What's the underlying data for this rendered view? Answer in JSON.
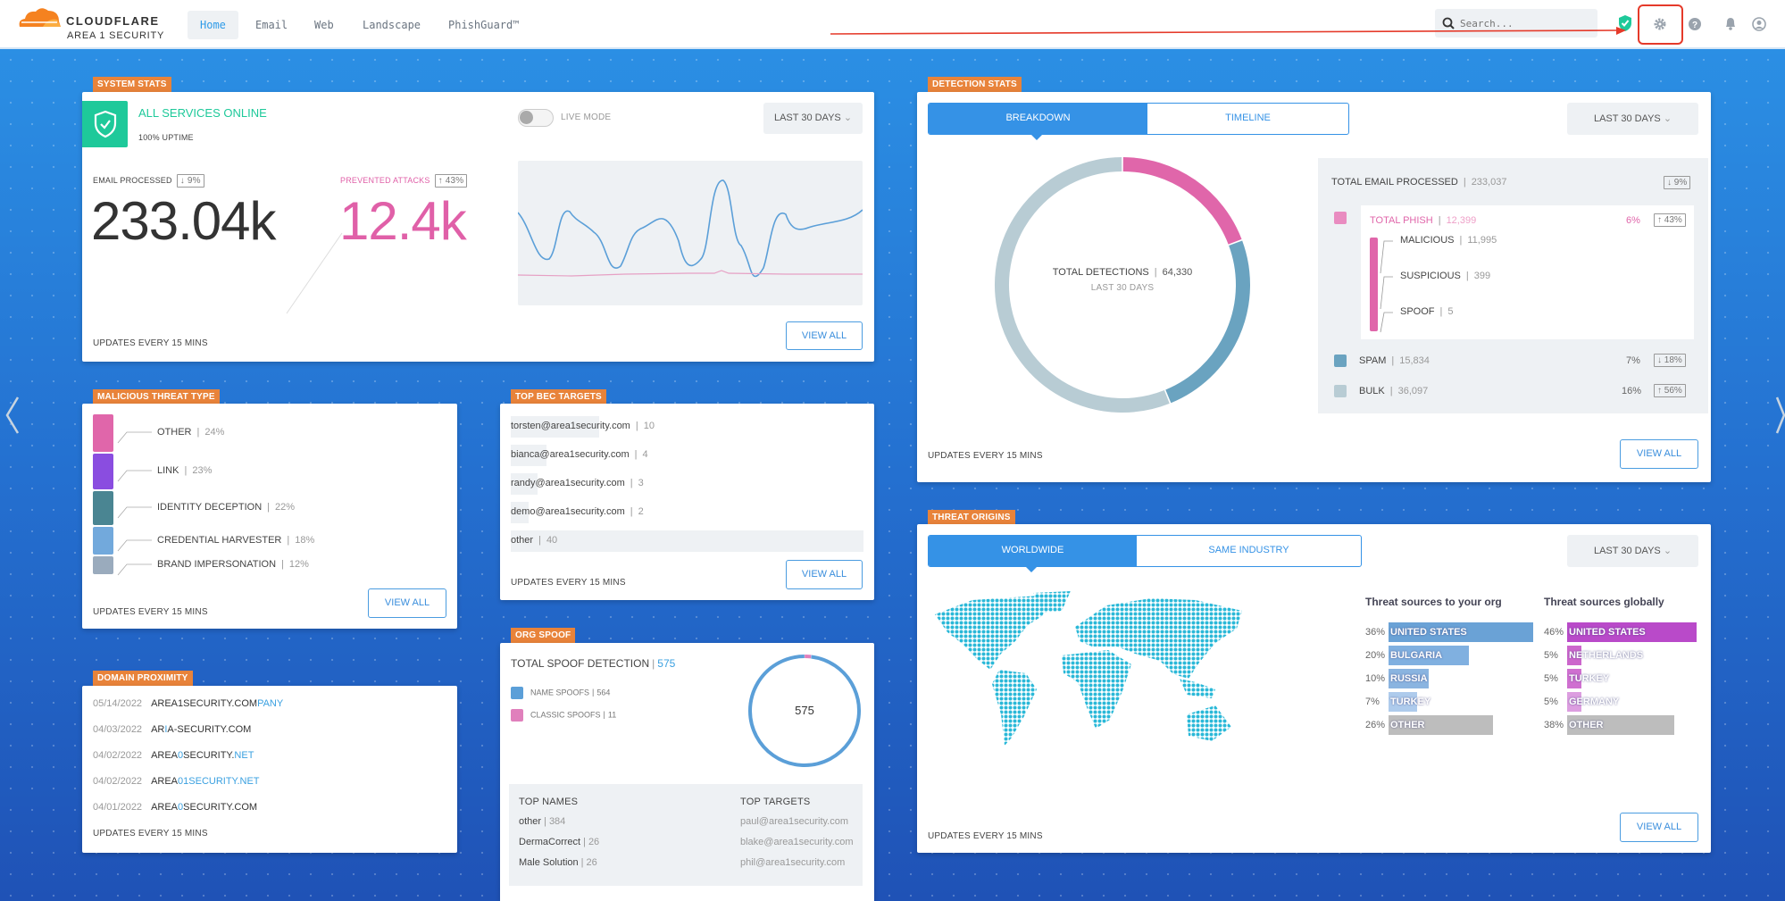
{
  "header": {
    "brand": "CLOUDFLARE",
    "sub_brand": "AREA 1 SECURITY",
    "nav": [
      {
        "label": "Home",
        "active": true
      },
      {
        "label": "Email"
      },
      {
        "label": "Web"
      },
      {
        "label": "Landscape"
      },
      {
        "label": "PhishGuard™"
      }
    ],
    "search_placeholder": "Search...",
    "icons": [
      "shield-check-icon",
      "gear-icon",
      "help-icon",
      "bell-icon",
      "user-icon"
    ],
    "annotation_color": "#e53a2a"
  },
  "common": {
    "updates": "UPDATES EVERY 15 MINS",
    "view_all": "VIEW ALL",
    "range": "LAST 30 DAYS"
  },
  "system_stats": {
    "tag": "SYSTEM STATS",
    "status": "ALL SERVICES ONLINE",
    "uptime": "100% UPTIME",
    "live_mode": "LIVE MODE",
    "live_mode_on": false,
    "email_label": "EMAIL PROCESSED",
    "email_change": "↓ 9%",
    "email_value": "233.04k",
    "prevented_label": "PREVENTED ATTACKS",
    "prevented_change": "↑ 43%",
    "prevented_value": "12.4k",
    "colors": {
      "online": "#1ec99a",
      "email_line": "#5b9fd8",
      "attack_line": "#e6a0c4"
    }
  },
  "detection_stats": {
    "tag": "DETECTION STATS",
    "tabs": [
      "BREAKDOWN",
      "TIMELINE"
    ],
    "active_tab": "BREAKDOWN",
    "total_label": "TOTAL DETECTIONS",
    "total_value": "64,330",
    "total_sub": "LAST 30 DAYS",
    "email_total_label": "TOTAL EMAIL PROCESSED",
    "email_total_value": "233,037",
    "email_total_change": "↓ 9%",
    "phish": {
      "label": "TOTAL PHISH",
      "value": "12,399",
      "pct": "6%",
      "change": "↑ 43%",
      "color": "#e066aa",
      "count": 12399
    },
    "phish_breakdown": [
      {
        "label": "MALICIOUS",
        "value": "11,995"
      },
      {
        "label": "SUSPICIOUS",
        "value": "399"
      },
      {
        "label": "SPOOF",
        "value": "5"
      }
    ],
    "spam": {
      "label": "SPAM",
      "value": "15,834",
      "pct": "7%",
      "change": "↓ 18%",
      "color": "#6aa3c0",
      "count": 15834
    },
    "bulk": {
      "label": "BULK",
      "value": "36,097",
      "pct": "16%",
      "change": "↑ 56%",
      "color": "#b8ccd4",
      "count": 36097
    }
  },
  "malicious_threat_type": {
    "tag": "MALICIOUS THREAT TYPE",
    "items": [
      {
        "label": "OTHER",
        "pct": "24%",
        "value": 24,
        "color": "#e066aa"
      },
      {
        "label": "LINK",
        "pct": "23%",
        "value": 23,
        "color": "#8a4de0"
      },
      {
        "label": "IDENTITY DECEPTION",
        "pct": "22%",
        "value": 22,
        "color": "#4a8592"
      },
      {
        "label": "CREDENTIAL HARVESTER",
        "pct": "18%",
        "value": 18,
        "color": "#72a9dc"
      },
      {
        "label": "BRAND IMPERSONATION",
        "pct": "12%",
        "value": 12,
        "color": "#9aabbd"
      }
    ]
  },
  "top_bec_targets": {
    "tag": "TOP BEC TARGETS",
    "items": [
      {
        "email": "torsten@area1security.com",
        "count": "10",
        "value": 10
      },
      {
        "email": "bianca@area1security.com",
        "count": "4",
        "value": 4
      },
      {
        "email": "randy@area1security.com",
        "count": "3",
        "value": 3
      },
      {
        "email": "demo@area1security.com",
        "count": "2",
        "value": 2
      },
      {
        "email": "other",
        "count": "40",
        "value": 40
      }
    ]
  },
  "domain_proximity": {
    "tag": "DOMAIN PROXIMITY",
    "highlight_color": "#3aa0e0",
    "items": [
      {
        "date": "05/14/2022",
        "parts": [
          {
            "t": "AREA1SECURITY.COM"
          },
          {
            "t": "PANY",
            "hl": true
          }
        ]
      },
      {
        "date": "04/03/2022",
        "parts": [
          {
            "t": "AR"
          },
          {
            "t": "I",
            "hl": true
          },
          {
            "t": "A-SECURITY.COM"
          }
        ]
      },
      {
        "date": "04/02/2022",
        "parts": [
          {
            "t": "AREA"
          },
          {
            "t": "0",
            "hl": true
          },
          {
            "t": "SECURITY."
          },
          {
            "t": "NET",
            "hl": true
          }
        ]
      },
      {
        "date": "04/02/2022",
        "parts": [
          {
            "t": "AREA"
          },
          {
            "t": "01SECURITY.NET",
            "hl": true
          }
        ]
      },
      {
        "date": "04/01/2022",
        "parts": [
          {
            "t": "AREA"
          },
          {
            "t": "0",
            "hl": true
          },
          {
            "t": "SECURITY.COM"
          }
        ]
      }
    ]
  },
  "org_spoof": {
    "tag": "ORG SPOOF",
    "title": "TOTAL SPOOF DETECTION",
    "total": "575",
    "legend": [
      {
        "label": "NAME SPOOFS",
        "count": "564",
        "value": 564,
        "color": "#5b9fd8"
      },
      {
        "label": "CLASSIC SPOOFS",
        "count": "11",
        "value": 11,
        "color": "#e080bc"
      }
    ],
    "top_names_label": "TOP NAMES",
    "top_names": [
      {
        "name": "other",
        "count": "384"
      },
      {
        "name": "DermaCorrect",
        "count": "26"
      },
      {
        "name": "Male Solution",
        "count": "26"
      }
    ],
    "top_targets_label": "TOP TARGETS",
    "top_targets": [
      "paul@area1security.com",
      "blake@area1security.com",
      "phil@area1security.com"
    ]
  },
  "threat_origins": {
    "tag": "THREAT ORIGINS",
    "tabs": [
      "WORLDWIDE",
      "SAME INDUSTRY"
    ],
    "active_tab": "WORLDWIDE",
    "map_color": "#2ab8d8",
    "org_title": "Threat sources to your org",
    "org": [
      {
        "country": "UNITED STATES",
        "pct": "36%",
        "value": 36,
        "color": "#6aa2d6"
      },
      {
        "country": "BULGARIA",
        "pct": "20%",
        "value": 20,
        "color": "#80b0e0"
      },
      {
        "country": "RUSSIA",
        "pct": "10%",
        "value": 10,
        "color": "#8ab4e0"
      },
      {
        "country": "TURKEY",
        "pct": "7%",
        "value": 7,
        "color": "#aecbec"
      },
      {
        "country": "OTHER",
        "pct": "26%",
        "value": 26,
        "color": "#bdbdbd"
      }
    ],
    "global_title": "Threat sources globally",
    "global": [
      {
        "country": "UNITED STATES",
        "pct": "46%",
        "value": 46,
        "color": "#b94ac9"
      },
      {
        "country": "NETHERLANDS",
        "pct": "5%",
        "value": 5,
        "color": "#cc66cc"
      },
      {
        "country": "TURKEY",
        "pct": "5%",
        "value": 5,
        "color": "#cf70d0"
      },
      {
        "country": "GERMANY",
        "pct": "5%",
        "value": 5,
        "color": "#dc9ee0"
      },
      {
        "country": "OTHER",
        "pct": "38%",
        "value": 38,
        "color": "#bdbdbd"
      }
    ]
  }
}
